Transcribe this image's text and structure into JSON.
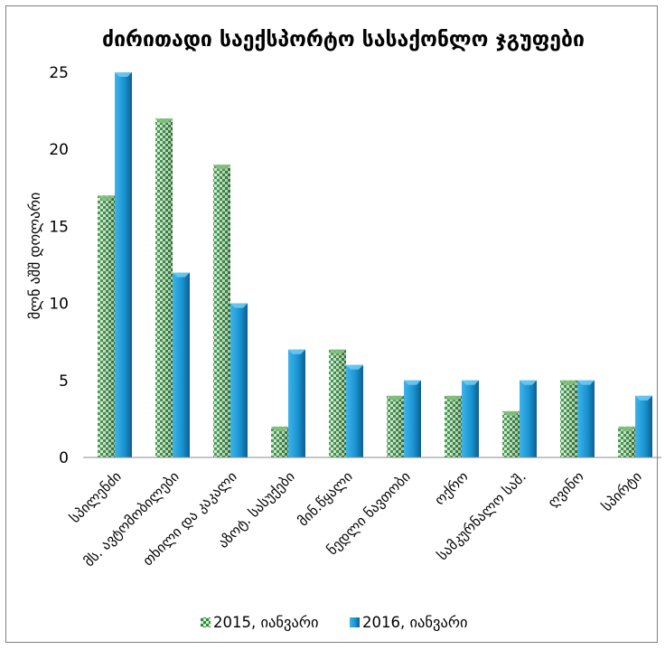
{
  "chart_data": {
    "type": "bar",
    "title": "ძირითადი საექსპორტო სასაქონლო ჯგუფები",
    "xlabel": "",
    "ylabel": "მლნ აშშ დოლარი",
    "ylim": [
      0,
      25
    ],
    "yticks": [
      0,
      5,
      10,
      15,
      20,
      25
    ],
    "grid": false,
    "legend_position": "bottom",
    "categories": [
      "სპილენძი",
      "მს. ავტომობილები",
      "თხილი და კაკალი",
      "აზოტ. სასუქები",
      "მინ.წყალი",
      "ნედლი ნავთობი",
      "ოქრო",
      "სამკურნალო საშ.",
      "ღვინო",
      "სპირტი"
    ],
    "series": [
      {
        "name": "2015, იანვარი",
        "values": [
          17,
          22,
          19,
          2,
          7,
          4,
          4,
          3,
          5,
          2
        ],
        "color": "#2e8b3e"
      },
      {
        "name": "2016, იანვარი",
        "values": [
          25,
          12,
          10,
          7,
          6,
          5,
          5,
          5,
          5,
          4
        ],
        "color": "#1c8fcf"
      }
    ]
  }
}
